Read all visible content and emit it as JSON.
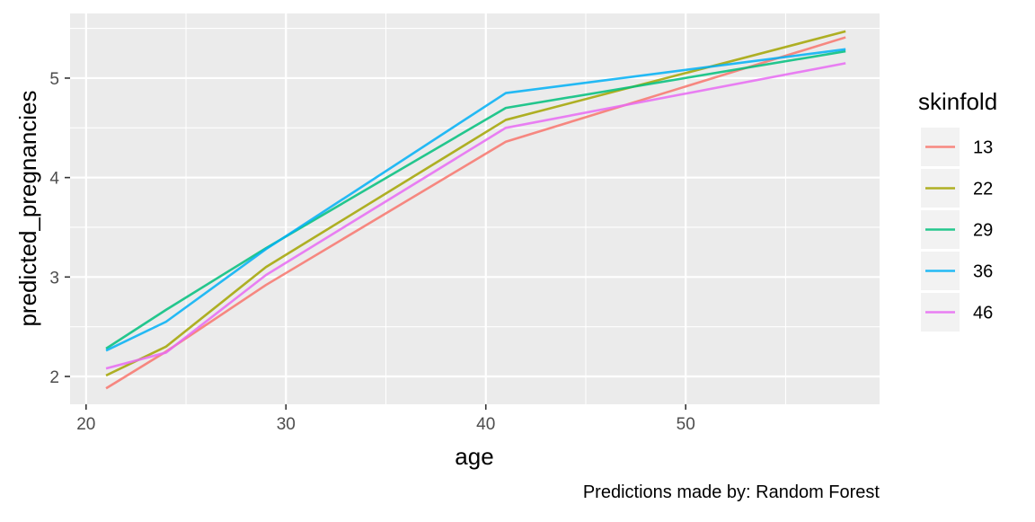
{
  "chart_data": {
    "type": "line",
    "title": "",
    "xlabel": "age",
    "ylabel": "predicted_pregnancies",
    "caption": "Predictions made by: Random Forest",
    "xlim": [
      19.2,
      59.7
    ],
    "ylim": [
      1.72,
      5.65
    ],
    "x_ticks": [
      20,
      30,
      40,
      50
    ],
    "y_ticks": [
      2,
      3,
      4,
      5
    ],
    "grid": true,
    "legend": {
      "title": "skinfold",
      "placement": "right"
    },
    "x": [
      21,
      24,
      29,
      41,
      58
    ],
    "series": [
      {
        "name": "13",
        "color": "#F8766D",
        "values": [
          1.88,
          2.25,
          2.92,
          4.36,
          5.41
        ]
      },
      {
        "name": "22",
        "color": "#A3A500",
        "values": [
          2.01,
          2.3,
          3.1,
          4.58,
          5.47
        ]
      },
      {
        "name": "29",
        "color": "#00BF7D",
        "values": [
          2.28,
          2.67,
          3.29,
          4.7,
          5.27
        ]
      },
      {
        "name": "36",
        "color": "#00B0F6",
        "values": [
          2.26,
          2.55,
          3.28,
          4.85,
          5.29
        ]
      },
      {
        "name": "46",
        "color": "#E76BF3",
        "values": [
          2.08,
          2.24,
          3.02,
          4.5,
          5.15
        ]
      }
    ]
  }
}
